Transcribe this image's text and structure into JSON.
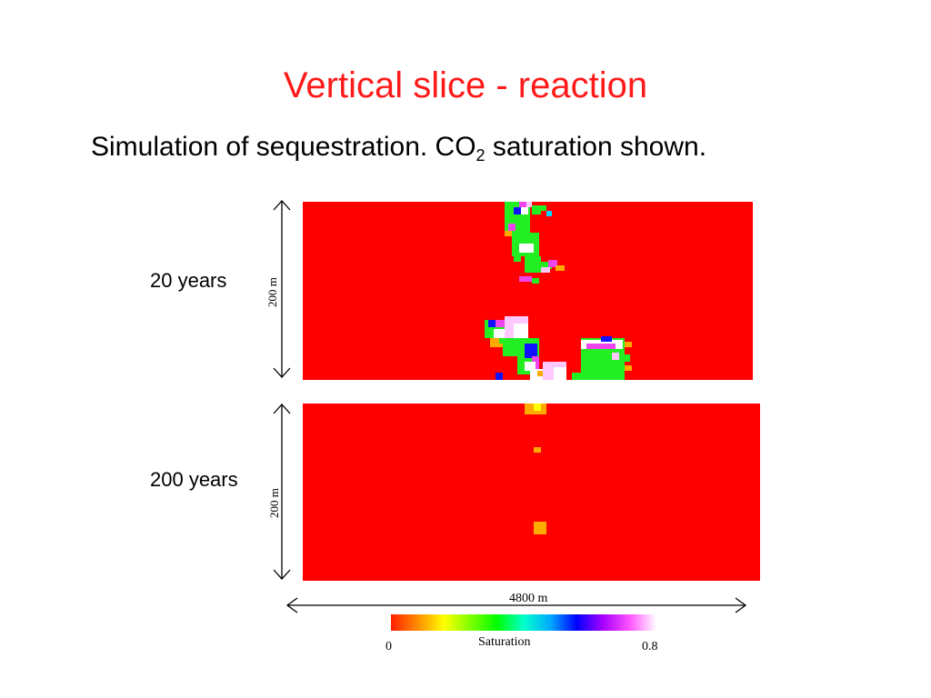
{
  "slide": {
    "title": "Vertical slice - reaction",
    "subtitle_prefix": "Simulation of sequestration.   CO",
    "subtitle_sub": "2",
    "subtitle_suffix": " saturation shown."
  },
  "panels": [
    {
      "label": "20 years",
      "height_label": "200 m"
    },
    {
      "label": "200 years",
      "height_label": "200 m"
    }
  ],
  "width_label": "4800 m",
  "colorbar": {
    "label": "Saturation",
    "min_label": "0",
    "max_label": "0.8",
    "min": 0,
    "max": 0.8
  },
  "colors": {
    "background_field": "#ff0000",
    "title": "#ff1a1a",
    "scale": [
      "#ff2000",
      "#ff8c00",
      "#ffff00",
      "#7fff00",
      "#00ff00",
      "#00ffcc",
      "#00aaff",
      "#0000ff",
      "#aa00ff",
      "#ff55ff",
      "#ffffff"
    ]
  }
}
